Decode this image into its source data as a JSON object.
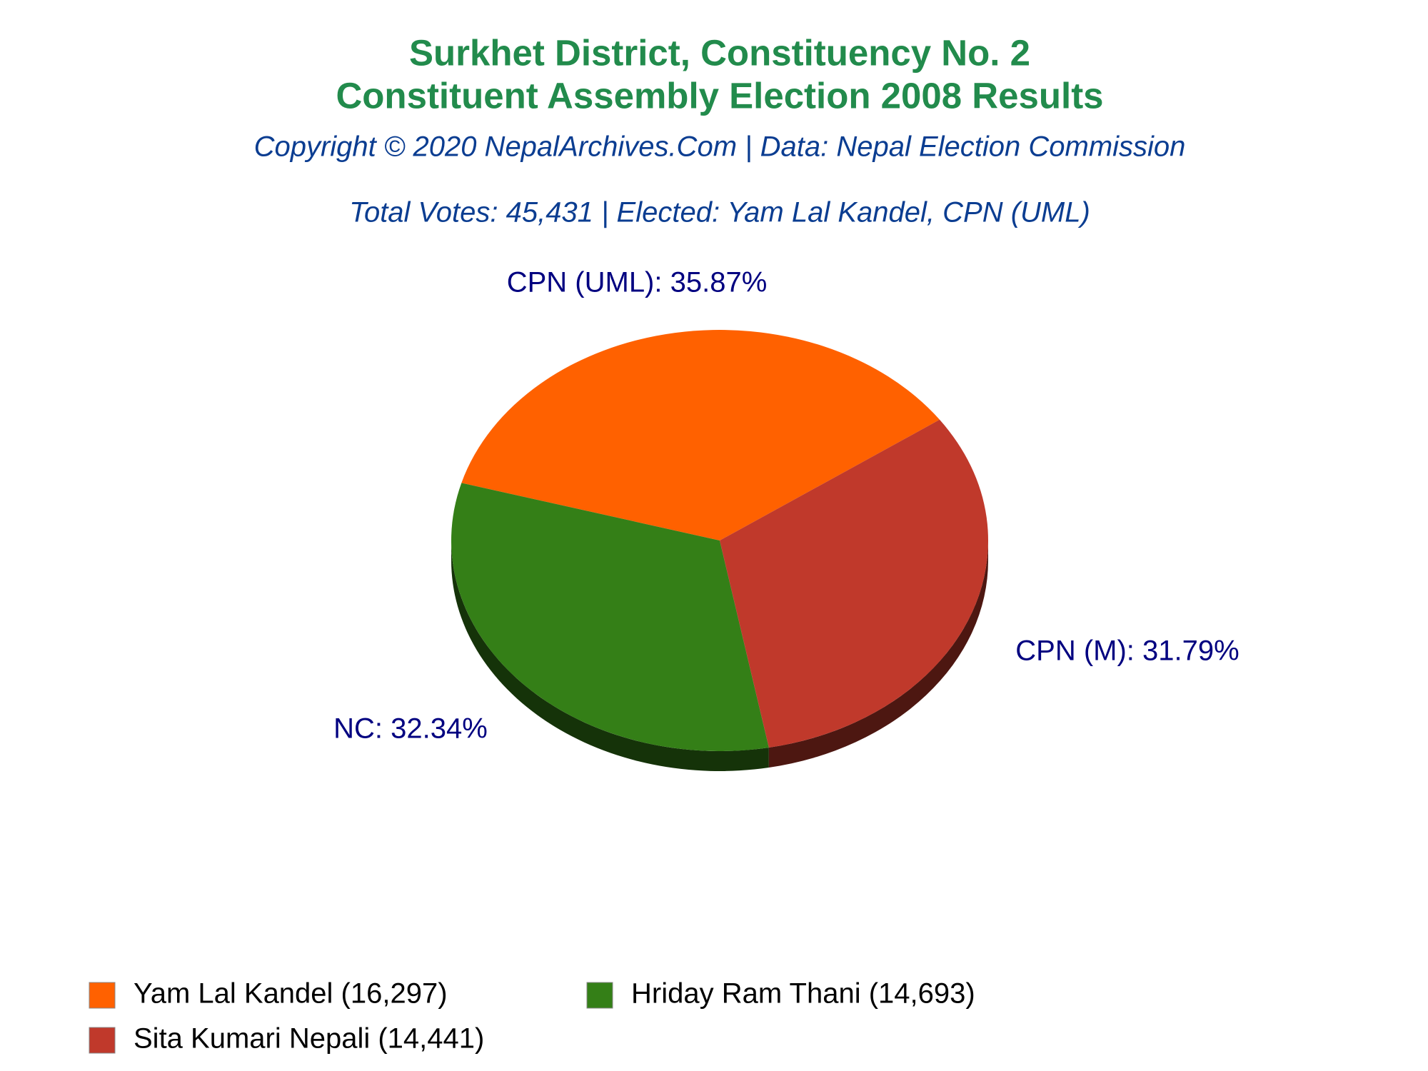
{
  "chart_data": {
    "type": "pie",
    "title": [
      "Surkhet District, Constituency No. 2",
      "Constituent Assembly Election 2008 Results"
    ],
    "subtitle": [
      "Copyright © 2020 NepalArchives.Com | Data: Nepal Election Commission",
      "Total Votes: 45,431 | Elected: Yam Lal Kandel, CPN (UML)"
    ],
    "categories": [
      "Yam Lal Kandel (16,297)",
      "Hriday Ram Thani (14,693)",
      "Sita Kumari Nepali (14,441)"
    ],
    "values": [
      35.87,
      32.34,
      31.79
    ],
    "value_labels": [
      "CPN (UML): 35.87%",
      "NC: 32.34%",
      "CPN (M): 31.79%"
    ],
    "colors": [
      "#ff6100",
      "#347f17",
      "#c0392b"
    ]
  }
}
